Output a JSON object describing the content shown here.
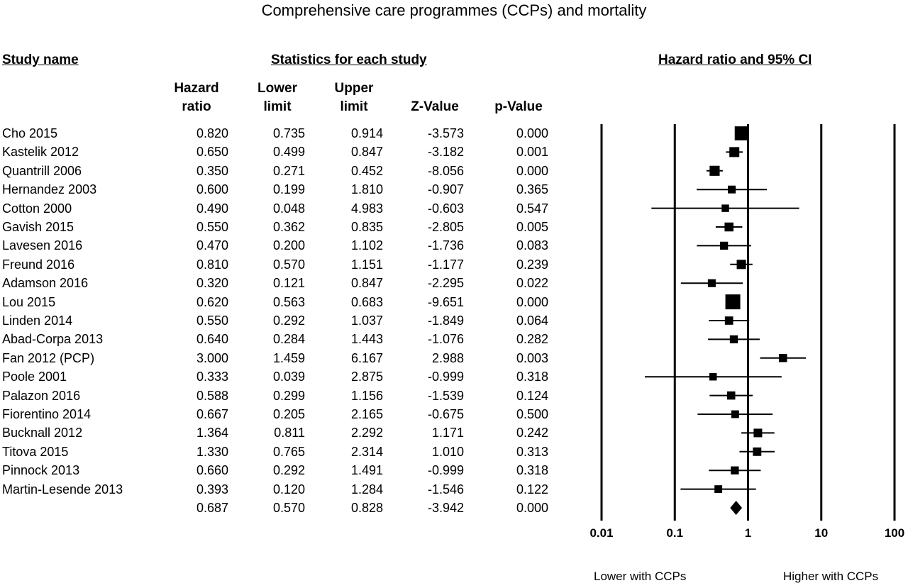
{
  "chart_data": {
    "type": "forest",
    "title": "Comprehensive care programmes (CCPs) and mortality",
    "study_header": "Study name",
    "stats_header": "Statistics for each study",
    "plot_header": "Hazard ratio and 95% CI",
    "columns": [
      {
        "line1": "Hazard",
        "line2": "ratio"
      },
      {
        "line1": "Lower",
        "line2": "limit"
      },
      {
        "line1": "Upper",
        "line2": "limit"
      },
      {
        "line1": "",
        "line2": "Z-Value"
      },
      {
        "line1": "",
        "line2": "p-Value"
      }
    ],
    "x_scale": "log",
    "xlim": [
      0.01,
      100
    ],
    "x_ticks": [
      "0.01",
      "0.1",
      "1",
      "10",
      "100"
    ],
    "x_tick_values": [
      0.01,
      0.1,
      1,
      10,
      100
    ],
    "left_label": "Lower with CCPs",
    "right_label": "Higher with CCPs",
    "studies": [
      {
        "name": "Cho 2015",
        "hr": "0.820",
        "lower": "0.735",
        "upper": "0.914",
        "z": "-3.573",
        "p": "0.000"
      },
      {
        "name": "Kastelik 2012",
        "hr": "0.650",
        "lower": "0.499",
        "upper": "0.847",
        "z": "-3.182",
        "p": "0.001"
      },
      {
        "name": "Quantrill 2006",
        "hr": "0.350",
        "lower": "0.271",
        "upper": "0.452",
        "z": "-8.056",
        "p": "0.000"
      },
      {
        "name": "Hernandez 2003",
        "hr": "0.600",
        "lower": "0.199",
        "upper": "1.810",
        "z": "-0.907",
        "p": "0.365"
      },
      {
        "name": "Cotton 2000",
        "hr": "0.490",
        "lower": "0.048",
        "upper": "4.983",
        "z": "-0.603",
        "p": "0.547"
      },
      {
        "name": "Gavish 2015",
        "hr": "0.550",
        "lower": "0.362",
        "upper": "0.835",
        "z": "-2.805",
        "p": "0.005"
      },
      {
        "name": "Lavesen 2016",
        "hr": "0.470",
        "lower": "0.200",
        "upper": "1.102",
        "z": "-1.736",
        "p": "0.083"
      },
      {
        "name": "Freund 2016",
        "hr": "0.810",
        "lower": "0.570",
        "upper": "1.151",
        "z": "-1.177",
        "p": "0.239"
      },
      {
        "name": "Adamson 2016",
        "hr": "0.320",
        "lower": "0.121",
        "upper": "0.847",
        "z": "-2.295",
        "p": "0.022"
      },
      {
        "name": "Lou 2015",
        "hr": "0.620",
        "lower": "0.563",
        "upper": "0.683",
        "z": "-9.651",
        "p": "0.000"
      },
      {
        "name": "Linden 2014",
        "hr": "0.550",
        "lower": "0.292",
        "upper": "1.037",
        "z": "-1.849",
        "p": "0.064"
      },
      {
        "name": "Abad-Corpa 2013",
        "hr": "0.640",
        "lower": "0.284",
        "upper": "1.443",
        "z": "-1.076",
        "p": "0.282"
      },
      {
        "name": "Fan 2012 (PCP)",
        "hr": "3.000",
        "lower": "1.459",
        "upper": "6.167",
        "z": "2.988",
        "p": "0.003"
      },
      {
        "name": "Poole 2001",
        "hr": "0.333",
        "lower": "0.039",
        "upper": "2.875",
        "z": "-0.999",
        "p": "0.318"
      },
      {
        "name": "Palazon 2016",
        "hr": "0.588",
        "lower": "0.299",
        "upper": "1.156",
        "z": "-1.539",
        "p": "0.124"
      },
      {
        "name": "Fiorentino 2014",
        "hr": "0.667",
        "lower": "0.205",
        "upper": "2.165",
        "z": "-0.675",
        "p": "0.500"
      },
      {
        "name": "Bucknall 2012",
        "hr": "1.364",
        "lower": "0.811",
        "upper": "2.292",
        "z": "1.171",
        "p": "0.242"
      },
      {
        "name": "Titova 2015",
        "hr": "1.330",
        "lower": "0.765",
        "upper": "2.314",
        "z": "1.010",
        "p": "0.313"
      },
      {
        "name": "Pinnock 2013",
        "hr": "0.660",
        "lower": "0.292",
        "upper": "1.491",
        "z": "-0.999",
        "p": "0.318"
      },
      {
        "name": "Martin-Lesende 2013",
        "hr": "0.393",
        "lower": "0.120",
        "upper": "1.284",
        "z": "-1.546",
        "p": "0.122"
      }
    ],
    "summary": {
      "name": "",
      "hr": "0.687",
      "lower": "0.570",
      "upper": "0.828",
      "z": "-3.942",
      "p": "0.000"
    }
  }
}
